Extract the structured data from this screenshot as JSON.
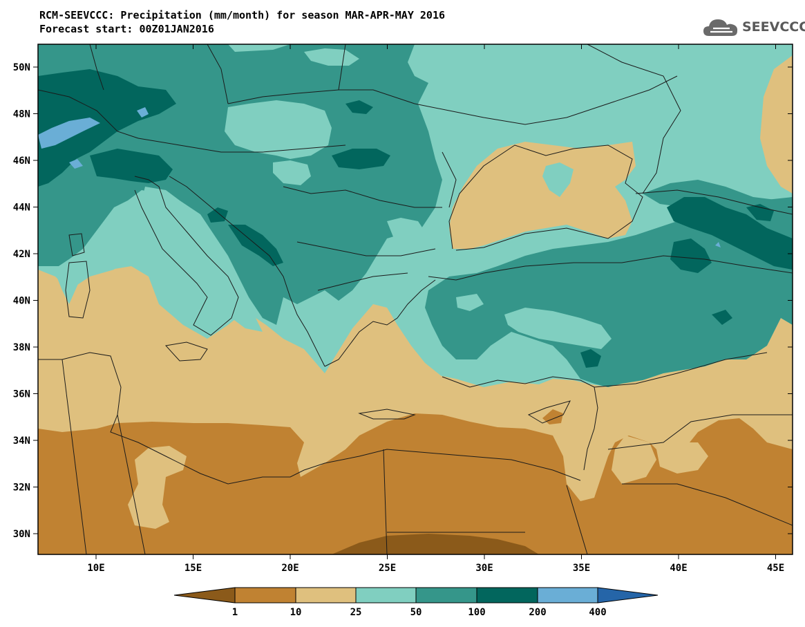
{
  "header": {
    "title_line1": "RCM-SEEVCCC: Precipitation (mm/month) for season MAR-APR-MAY 2016",
    "title_line2": "Forecast start: 00Z01JAN2016"
  },
  "logo": {
    "icon": "cloud-logo-icon",
    "text": "SEEVCCC"
  },
  "map": {
    "lat_labels": [
      "50N",
      "48N",
      "46N",
      "44N",
      "42N",
      "40N",
      "38N",
      "36N",
      "34N",
      "32N",
      "30N"
    ],
    "lon_labels": [
      "10E",
      "15E",
      "20E",
      "25E",
      "30E",
      "35E",
      "40E",
      "45E"
    ],
    "colors": {
      "lt1": "#8b5a1a",
      "c1_10": "#c08232",
      "c10_25": "#dfc07e",
      "c25_50": "#80cfc0",
      "c50_100": "#35968a",
      "c100_200": "#02665d",
      "c200_400": "#6aaed6",
      "gt400": "#2565a8",
      "border": "#1a1a1a"
    }
  },
  "colorbar": {
    "labels": [
      "1",
      "10",
      "25",
      "50",
      "100",
      "200",
      "400"
    ]
  }
}
